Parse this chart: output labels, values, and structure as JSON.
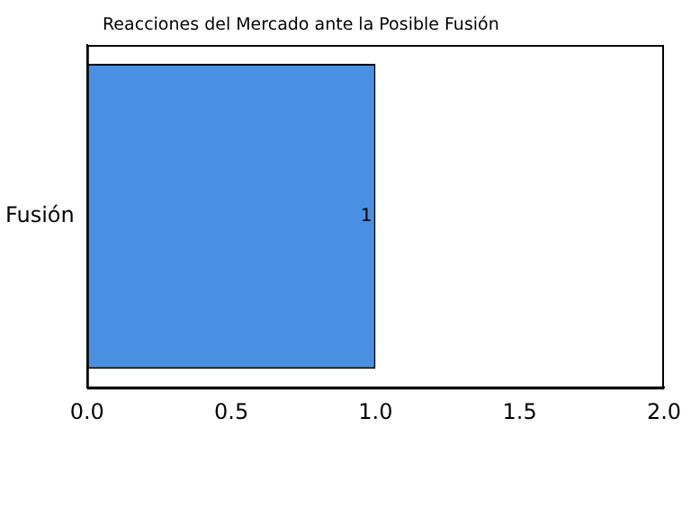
{
  "chart_data": {
    "type": "bar",
    "orientation": "horizontal",
    "title": "Reacciones del Mercado ante la Posible Fusión",
    "categories": [
      "Fusión"
    ],
    "values": [
      1
    ],
    "color": "#4a90e2",
    "xlim": [
      0,
      2
    ],
    "xticks": [
      {
        "value": 0,
        "label": "0.0"
      },
      0.5,
      {
        "value": 1,
        "label": "1.0"
      },
      1.5,
      {
        "value": 2,
        "label": "2.0"
      }
    ],
    "data_labels": true,
    "grid": false,
    "legend": false
  }
}
